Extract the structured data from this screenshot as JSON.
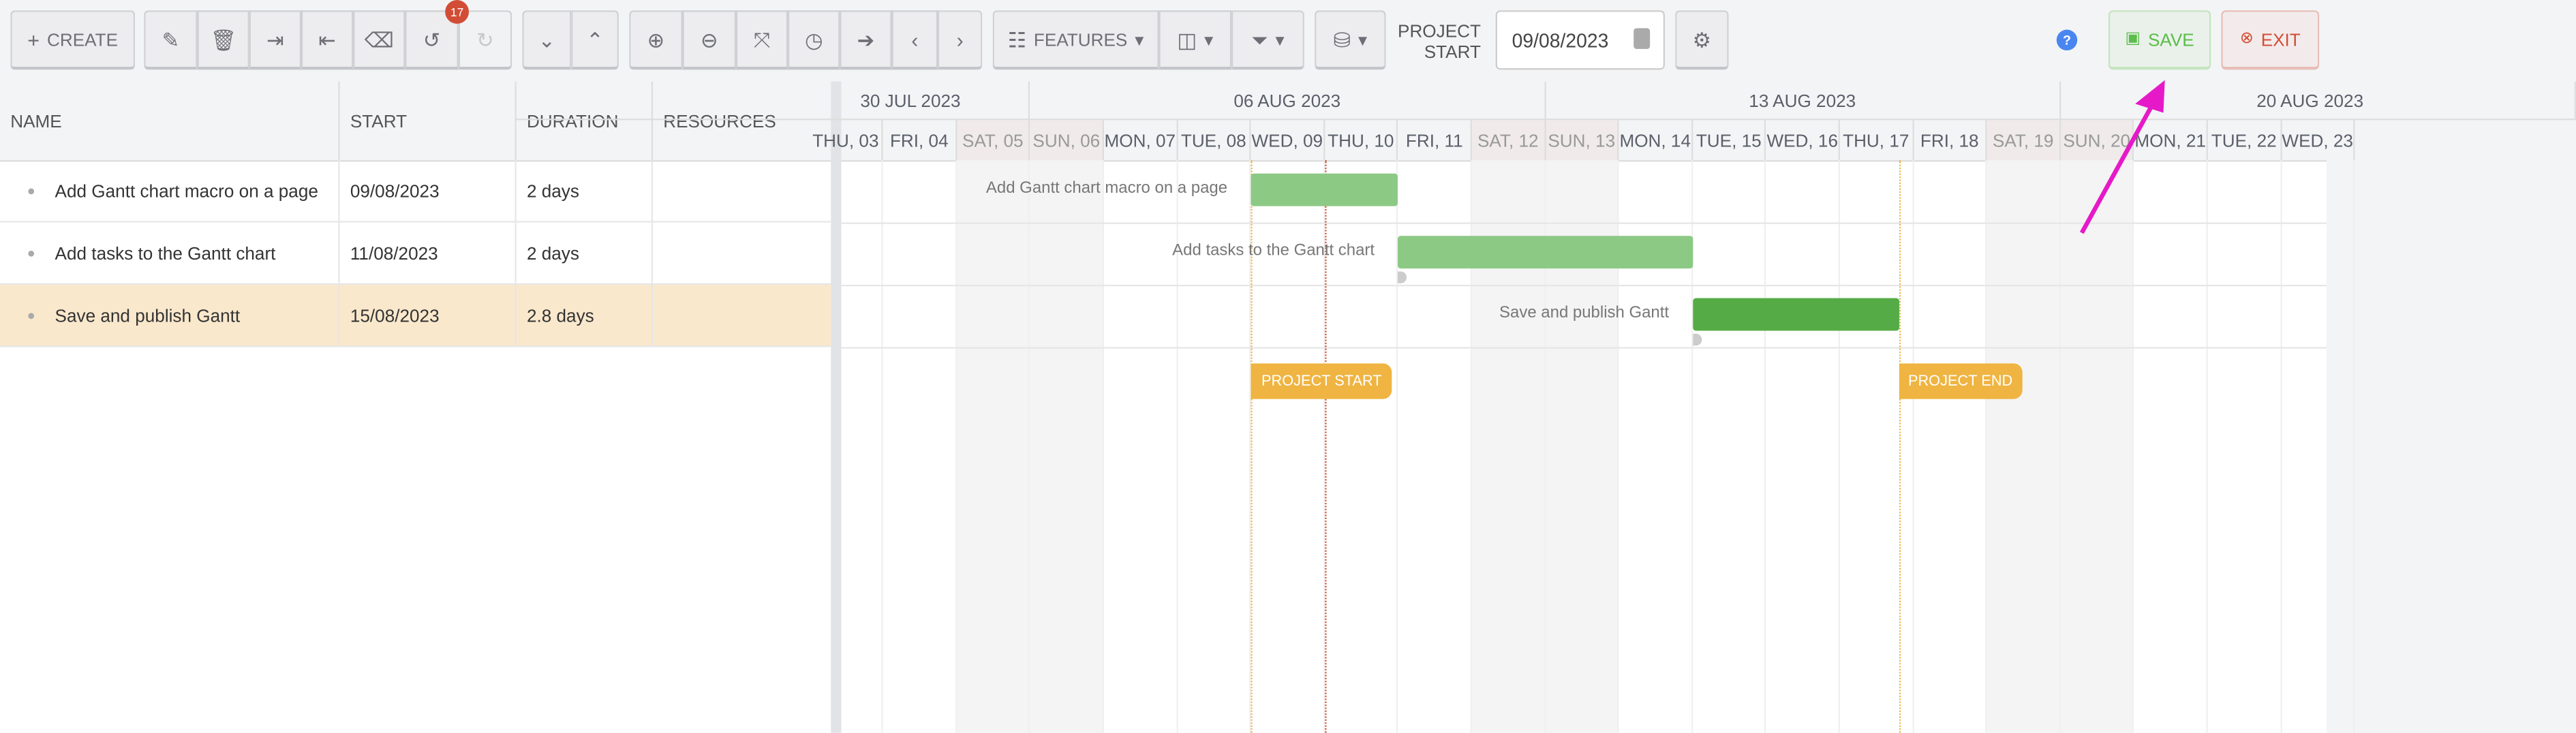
{
  "toolbar": {
    "create_label": "CREATE",
    "undo_badge": "17",
    "features_label": "FEATURES",
    "project_start_label": "PROJECT START",
    "project_start_value": "09/08/2023",
    "save_label": "SAVE",
    "exit_label": "EXIT",
    "help_glyph": "?"
  },
  "grid": {
    "columns": [
      "NAME",
      "START",
      "DURATION",
      "RESOURCES"
    ],
    "rows": [
      {
        "name": "Add Gantt chart macro on a page",
        "start": "09/08/2023",
        "duration": "2 days",
        "resources": "",
        "selected": false
      },
      {
        "name": "Add tasks to the Gantt chart",
        "start": "11/08/2023",
        "duration": "2 days",
        "resources": "",
        "selected": false
      },
      {
        "name": "Save and publish Gantt",
        "start": "15/08/2023",
        "duration": "2.8 days",
        "resources": "",
        "selected": true
      }
    ]
  },
  "timeline": {
    "weeks": [
      "30 JUL 2023",
      "06 AUG 2023",
      "13 AUG 2023",
      "20 AUG 2023"
    ],
    "days": [
      "THU, 03",
      "FRI, 04",
      "SAT, 05",
      "SUN, 06",
      "MON, 07",
      "TUE, 08",
      "WED, 09",
      "THU, 10",
      "FRI, 11",
      "SAT, 12",
      "SUN, 13",
      "MON, 14",
      "TUE, 15",
      "WED, 16",
      "THU, 17",
      "FRI, 18",
      "SAT, 19",
      "SUN, 20",
      "MON, 21",
      "TUE, 22",
      "WED, 23"
    ],
    "project_start_marker": "PROJECT START",
    "project_end_marker": "PROJECT END",
    "colors": {
      "bar_light": "#8cc985",
      "bar_dark": "#55ab45",
      "marker": "#efb441",
      "today_line": "#d24d35",
      "selected_row": "#fae8cc",
      "annotation_arrow": "#e619c8"
    }
  }
}
